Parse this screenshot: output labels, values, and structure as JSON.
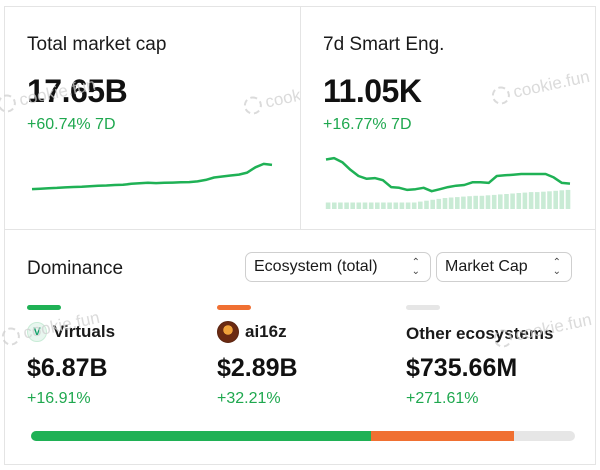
{
  "colors": {
    "green": "#1fb155",
    "orange": "#f07032",
    "grey": "#e6e6e6",
    "positive_text": "#1fa84f"
  },
  "watermark": "cookie.fun",
  "market_cap": {
    "label": "Total market cap",
    "value": "17.65B",
    "change": "+60.74% 7D"
  },
  "smart_engagement": {
    "label": "7d Smart Eng.",
    "value": "11.05K",
    "change": "+16.77% 7D"
  },
  "dominance": {
    "title": "Dominance",
    "selects": {
      "scope": "Ecosystem (total)",
      "metric": "Market Cap"
    },
    "ecosystems": [
      {
        "name": "Virtuals",
        "value": "$6.87B",
        "change": "+16.91%",
        "color": "#1fb155",
        "share": 0.625
      },
      {
        "name": "ai16z",
        "value": "$2.89B",
        "change": "+32.21%",
        "color": "#f07032",
        "share": 0.263
      },
      {
        "name": "Other ecosystems",
        "value": "$735.66M",
        "change": "+271.61%",
        "color": "#e6e6e6",
        "share": 0.067
      }
    ]
  },
  "chart_data": [
    {
      "type": "line",
      "values": [
        1,
        1.1,
        1.2,
        1.25,
        1.35,
        1.45,
        1.5,
        1.6,
        1.7,
        1.75,
        1.85,
        1.9,
        2.1,
        2.2,
        2.3,
        2.25,
        2.3,
        2.35,
        2.4,
        2.45,
        2.6,
        2.9,
        3.4,
        3.6,
        3.8,
        4.0,
        4.4,
        5.5,
        6.2,
        6.0
      ],
      "title": "",
      "xlabel": "",
      "ylabel": "",
      "grid": false
    },
    {
      "type": "line",
      "values": [
        8.0,
        8.2,
        7.6,
        6.5,
        5.6,
        5.2,
        5.3,
        5.0,
        4.0,
        3.9,
        3.6,
        3.7,
        3.9,
        3.4,
        3.7,
        4.0,
        4.2,
        4.3,
        4.7,
        4.7,
        4.6,
        5.6,
        5.7,
        5.8,
        5.9,
        5.9,
        5.9,
        5.9,
        5.4,
        4.6,
        4.5
      ],
      "bars": [
        1,
        1,
        1,
        1,
        1,
        1,
        1,
        1,
        1,
        1,
        1,
        1,
        1,
        1,
        1,
        1.2,
        1.4,
        1.6,
        1.8,
        2,
        2.1,
        2.2,
        2.3,
        2.4,
        2.5,
        2.5,
        2.6,
        2.7,
        2.8,
        2.9,
        3.0,
        3.1,
        3.2,
        3.3,
        3.3,
        3.4,
        3.5,
        3.6,
        3.7,
        3.8
      ],
      "title": "",
      "xlabel": "",
      "ylabel": "",
      "grid": false
    }
  ]
}
